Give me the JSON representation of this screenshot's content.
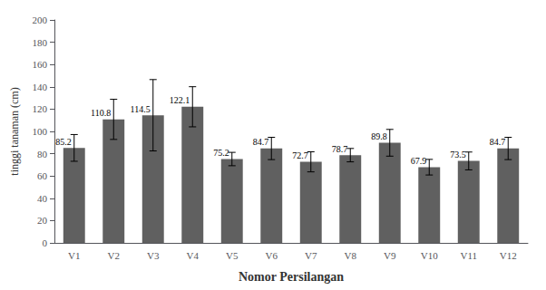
{
  "chart_data": {
    "type": "bar",
    "categories": [
      "V1",
      "V2",
      "V3",
      "V4",
      "V5",
      "V6",
      "V7",
      "V8",
      "V9",
      "V10",
      "V11",
      "V12"
    ],
    "values": [
      85.2,
      110.8,
      114.5,
      122.1,
      75.2,
      84.7,
      72.7,
      78.7,
      89.8,
      67.9,
      73.5,
      84.7
    ],
    "errors": [
      12,
      18,
      32,
      18,
      6,
      10,
      9,
      6,
      12,
      7,
      8,
      10
    ],
    "color": "#606060",
    "xlabel": "Nomor Persilangan",
    "ylabel": "tinggi tanaman (cm)",
    "ylim": [
      0,
      200
    ],
    "yticks": [
      0,
      20,
      40,
      60,
      80,
      100,
      120,
      140,
      160,
      180,
      200
    ],
    "grid": false,
    "data_labels": true
  }
}
